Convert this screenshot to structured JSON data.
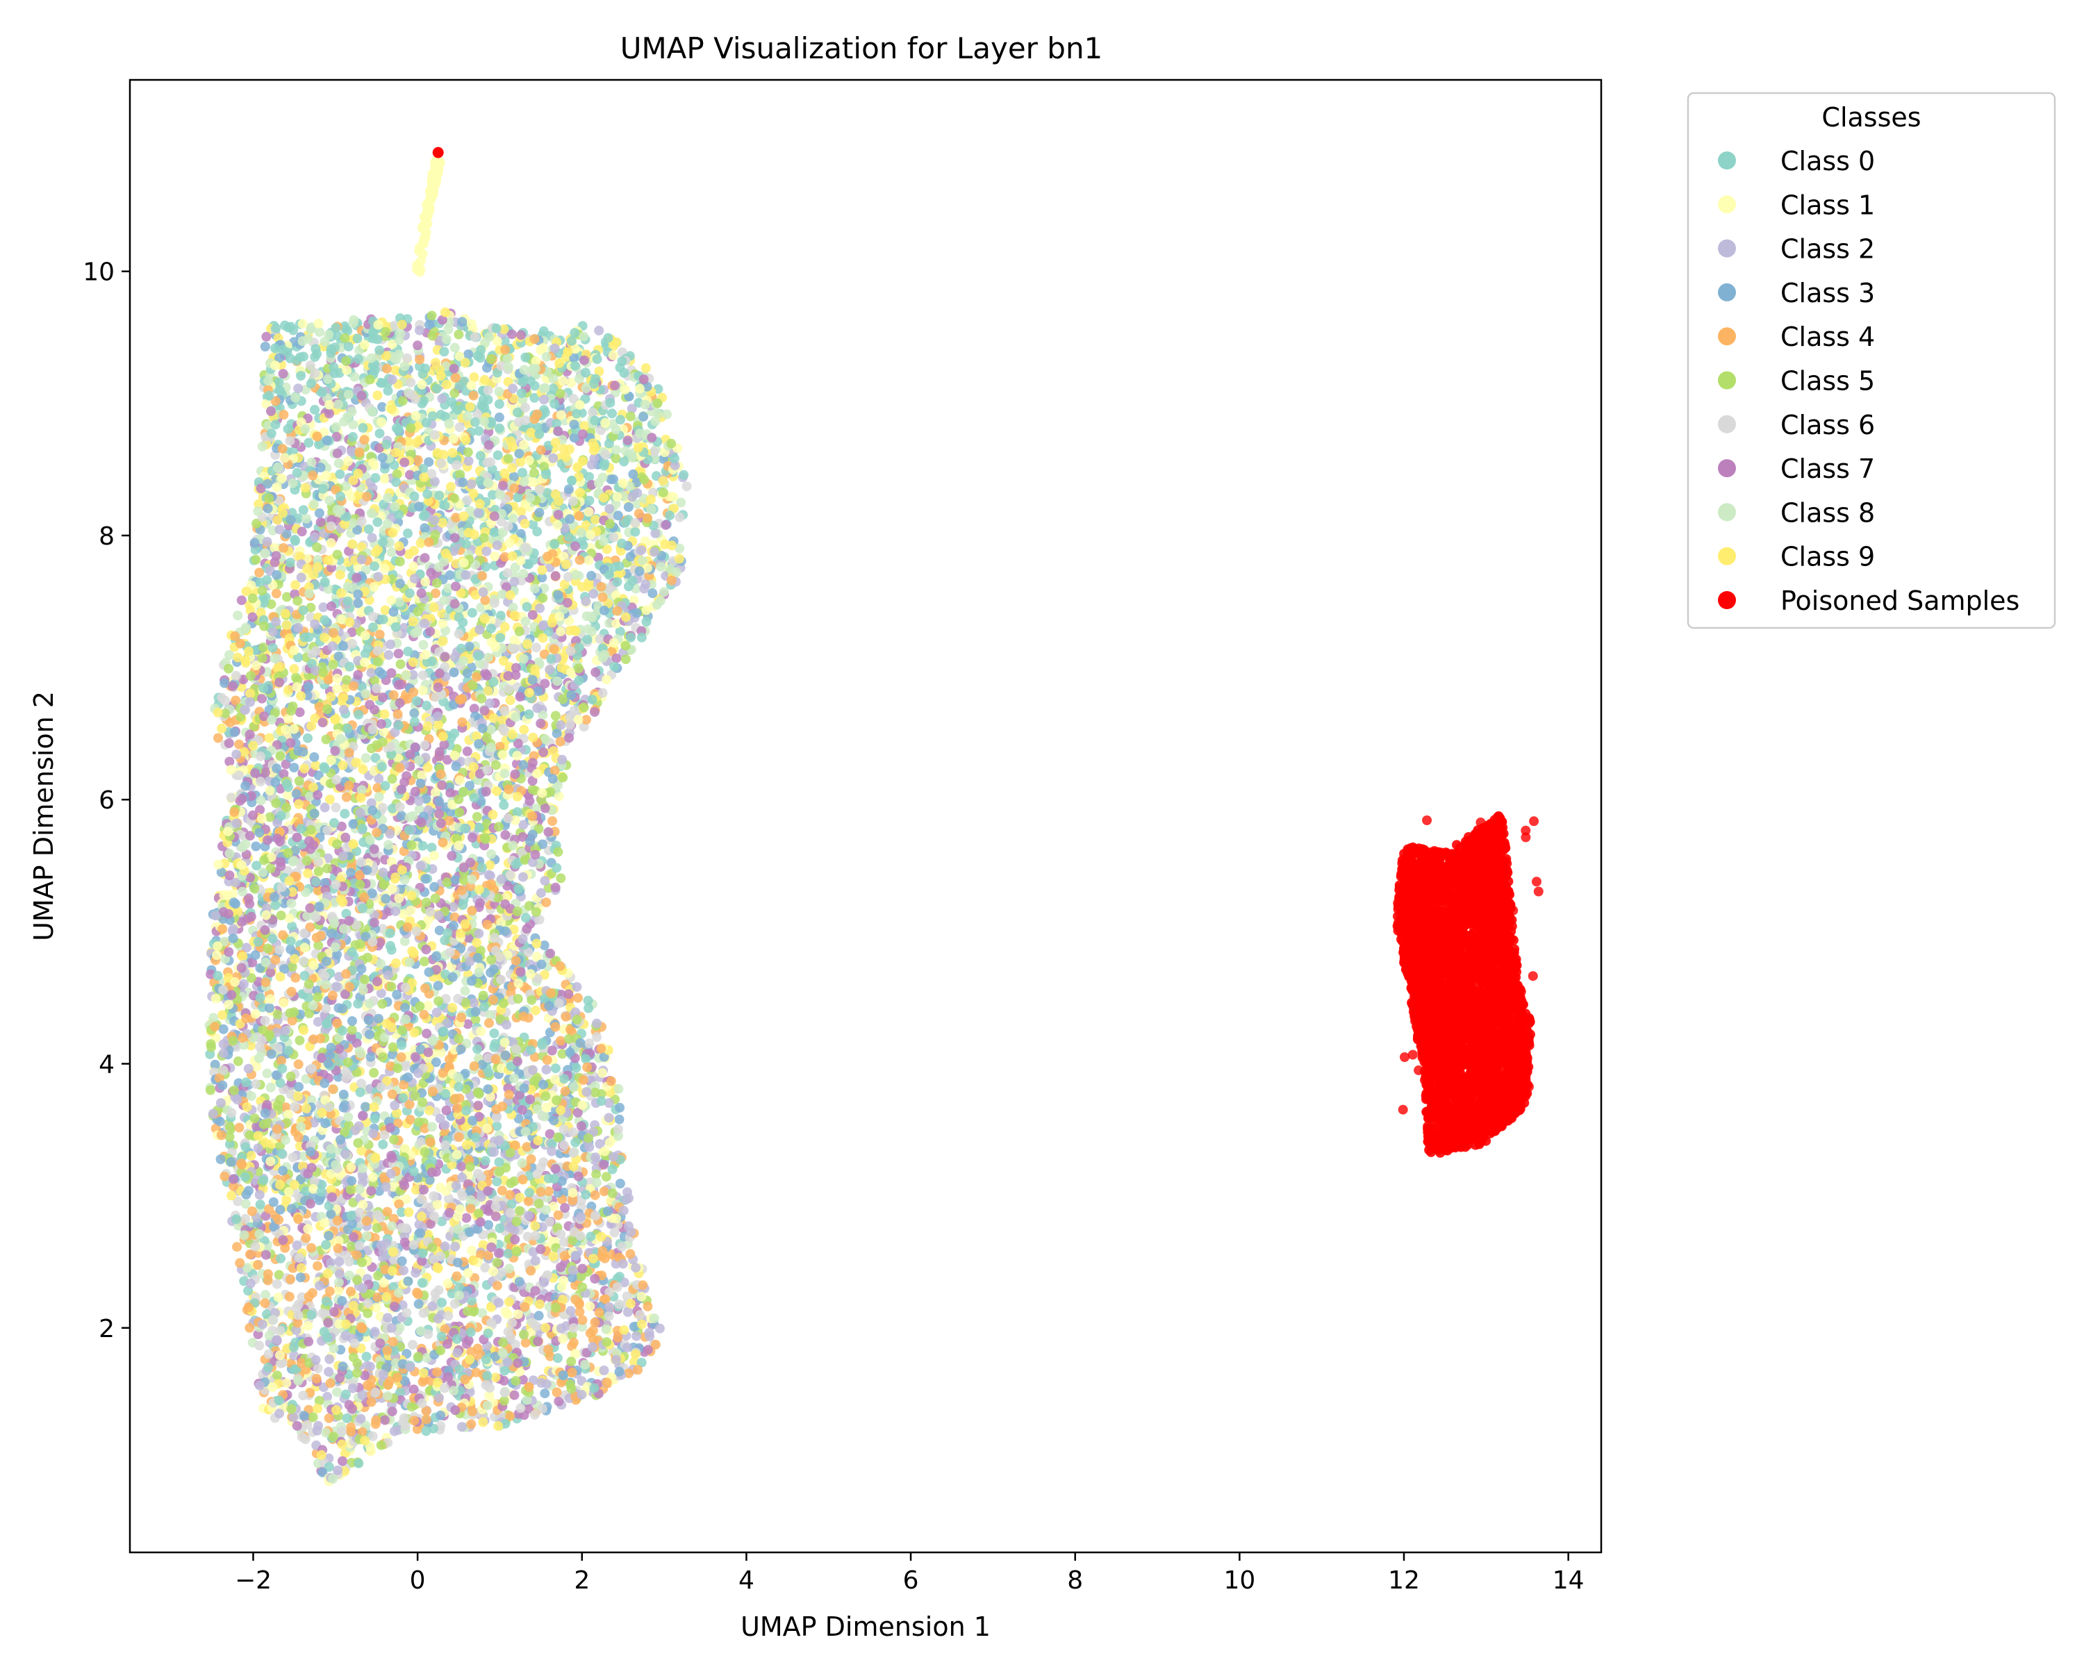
{
  "chart_data": {
    "type": "scatter",
    "title": "UMAP Visualization for Layer bn1",
    "xlabel": "UMAP Dimension 1",
    "ylabel": "UMAP Dimension 2",
    "xlim": [
      -3.5,
      14.4
    ],
    "ylim": [
      0.3,
      11.45
    ],
    "xticks": [
      -2,
      0,
      2,
      4,
      6,
      8,
      10,
      12,
      14
    ],
    "yticks": [
      2,
      4,
      6,
      8,
      10
    ],
    "xtick_labels": [
      "−2",
      "0",
      "2",
      "4",
      "6",
      "8",
      "10",
      "12",
      "14"
    ],
    "ytick_labels": [
      "2",
      "4",
      "6",
      "8",
      "10"
    ],
    "grid": false,
    "legend": {
      "title": "Classes",
      "placement": "outside-top-right",
      "entries": [
        "Class 0",
        "Class 1",
        "Class 2",
        "Class 3",
        "Class 4",
        "Class 5",
        "Class 6",
        "Class 7",
        "Class 8",
        "Class 9",
        "Poisoned Samples"
      ]
    },
    "series": [
      {
        "name": "Class 0",
        "color": "#8dd3c7"
      },
      {
        "name": "Class 1",
        "color": "#ffffb3"
      },
      {
        "name": "Class 2",
        "color": "#bebada"
      },
      {
        "name": "Class 3",
        "color": "#80b1d3"
      },
      {
        "name": "Class 4",
        "color": "#fdb462"
      },
      {
        "name": "Class 5",
        "color": "#b3de69"
      },
      {
        "name": "Class 6",
        "color": "#d9d9d9"
      },
      {
        "name": "Class 7",
        "color": "#bc80bd"
      },
      {
        "name": "Class 8",
        "color": "#ccebc5"
      },
      {
        "name": "Class 9",
        "color": "#ffed6f"
      },
      {
        "name": "Poisoned Samples",
        "color": "#ff0000"
      }
    ],
    "clusters": [
      {
        "name": "clean-classes",
        "approx_x_range": [
          -2.6,
          3.3
        ],
        "approx_y_range": [
          0.8,
          9.7
        ],
        "outline": [
          [
            -1.85,
            9.6
          ],
          [
            -0.5,
            9.65
          ],
          [
            0.3,
            9.7
          ],
          [
            1.2,
            9.55
          ],
          [
            2.2,
            9.6
          ],
          [
            2.9,
            9.2
          ],
          [
            3.3,
            8.4
          ],
          [
            3.2,
            7.7
          ],
          [
            2.4,
            6.9
          ],
          [
            2.2,
            6.7
          ],
          [
            1.85,
            6.4
          ],
          [
            1.7,
            5.8
          ],
          [
            1.75,
            5.4
          ],
          [
            1.45,
            5.0
          ],
          [
            2.2,
            4.4
          ],
          [
            2.45,
            3.8
          ],
          [
            2.5,
            3.2
          ],
          [
            2.75,
            2.4
          ],
          [
            3.0,
            1.9
          ],
          [
            2.5,
            1.55
          ],
          [
            1.0,
            1.25
          ],
          [
            -0.2,
            1.2
          ],
          [
            -1.1,
            0.8
          ],
          [
            -1.3,
            1.1
          ],
          [
            -1.9,
            1.4
          ],
          [
            -2.2,
            2.6
          ],
          [
            -2.55,
            3.8
          ],
          [
            -2.5,
            5.3
          ],
          [
            -2.25,
            6.1
          ],
          [
            -2.5,
            6.6
          ],
          [
            -2.3,
            7.2
          ],
          [
            -2.0,
            7.8
          ],
          [
            -1.9,
            8.7
          ]
        ]
      },
      {
        "name": "class-1-tail",
        "color": "#ffffb3",
        "approx_points": [
          [
            0.0,
            10.0
          ],
          [
            0.08,
            10.3
          ],
          [
            0.15,
            10.55
          ],
          [
            0.22,
            10.75
          ],
          [
            0.25,
            10.85
          ]
        ]
      },
      {
        "name": "poisoned-cluster",
        "color": "#ff0000",
        "approx_x_range": [
          11.9,
          13.6
        ],
        "approx_y_range": [
          3.3,
          5.9
        ],
        "outline": [
          [
            12.0,
            5.65
          ],
          [
            12.5,
            5.6
          ],
          [
            13.2,
            5.9
          ],
          [
            13.3,
            5.2
          ],
          [
            13.4,
            4.6
          ],
          [
            13.55,
            4.3
          ],
          [
            13.5,
            3.7
          ],
          [
            13.0,
            3.4
          ],
          [
            12.3,
            3.3
          ],
          [
            12.25,
            3.9
          ],
          [
            12.05,
            4.6
          ],
          [
            11.9,
            5.1
          ]
        ]
      },
      {
        "name": "poisoned-outlier",
        "color": "#ff0000",
        "approx_points": [
          [
            0.25,
            10.9
          ]
        ]
      }
    ]
  }
}
